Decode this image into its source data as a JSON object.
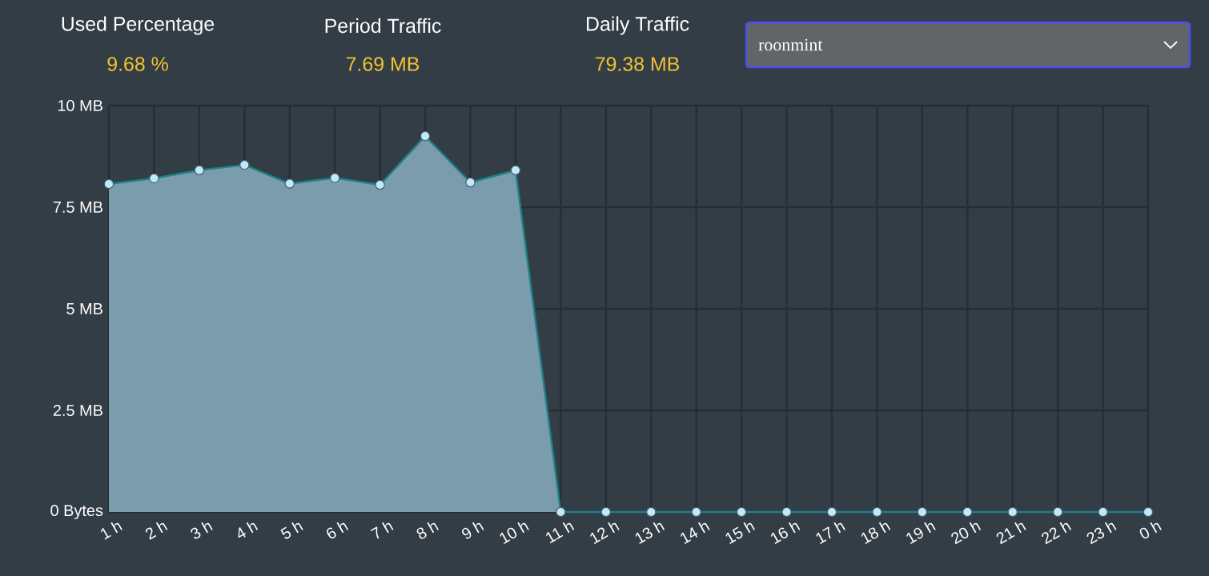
{
  "chart_data": {
    "type": "area",
    "categories": [
      "1 h",
      "2 h",
      "3 h",
      "4 h",
      "5 h",
      "6 h",
      "7 h",
      "8 h",
      "9 h",
      "10 h",
      "11 h",
      "12 h",
      "13 h",
      "14 h",
      "15 h",
      "16 h",
      "17 h",
      "18 h",
      "19 h",
      "20 h",
      "21 h",
      "22 h",
      "23 h",
      "0 h"
    ],
    "series": [
      {
        "color": "#7b9cad",
        "values": [
          8.07,
          8.21,
          8.41,
          8.54,
          8.08,
          8.22,
          8.05,
          9.25,
          8.11,
          8.41,
          0,
          0,
          0,
          0,
          0,
          0,
          0,
          0,
          0,
          0,
          0,
          0,
          0,
          0
        ]
      }
    ],
    "ylim": [
      0,
      10
    ],
    "yticks": [
      {
        "value": 0,
        "label": "0 Bytes"
      },
      {
        "value": 2.5,
        "label": "2.5 MB"
      },
      {
        "value": 5,
        "label": "5 MB"
      },
      {
        "value": 7.5,
        "label": "7.5 MB"
      },
      {
        "value": 10,
        "label": "10 MB"
      }
    ],
    "grid": true,
    "marker": "circle",
    "annotations": [
      "Used Percentage",
      "9.68 %",
      "Period Traffic",
      "7.69 MB",
      "Daily Traffic",
      "79.38 MB",
      "roonmint"
    ]
  }
}
